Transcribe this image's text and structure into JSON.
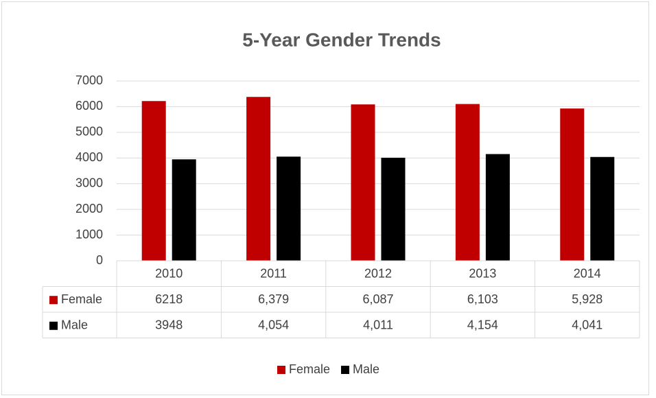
{
  "chart_data": {
    "type": "bar",
    "title": "5-Year Gender Trends",
    "categories": [
      "2010",
      "2011",
      "2012",
      "2013",
      "2014"
    ],
    "series": [
      {
        "name": "Female",
        "color": "#c00000",
        "values": [
          6218,
          6379,
          6087,
          6103,
          5928
        ],
        "value_labels": [
          "6218",
          "6,379",
          "6,087",
          "6,103",
          "5,928"
        ]
      },
      {
        "name": "Male",
        "color": "#000000",
        "values": [
          3948,
          4054,
          4011,
          4154,
          4041
        ],
        "value_labels": [
          "3948",
          "4,054",
          "4,011",
          "4,154",
          "4,041"
        ]
      }
    ],
    "ylim": [
      0,
      7000
    ],
    "yticks": [
      0,
      1000,
      2000,
      3000,
      4000,
      5000,
      6000,
      7000
    ],
    "grid": true,
    "legend": "bottom",
    "data_table": true
  }
}
